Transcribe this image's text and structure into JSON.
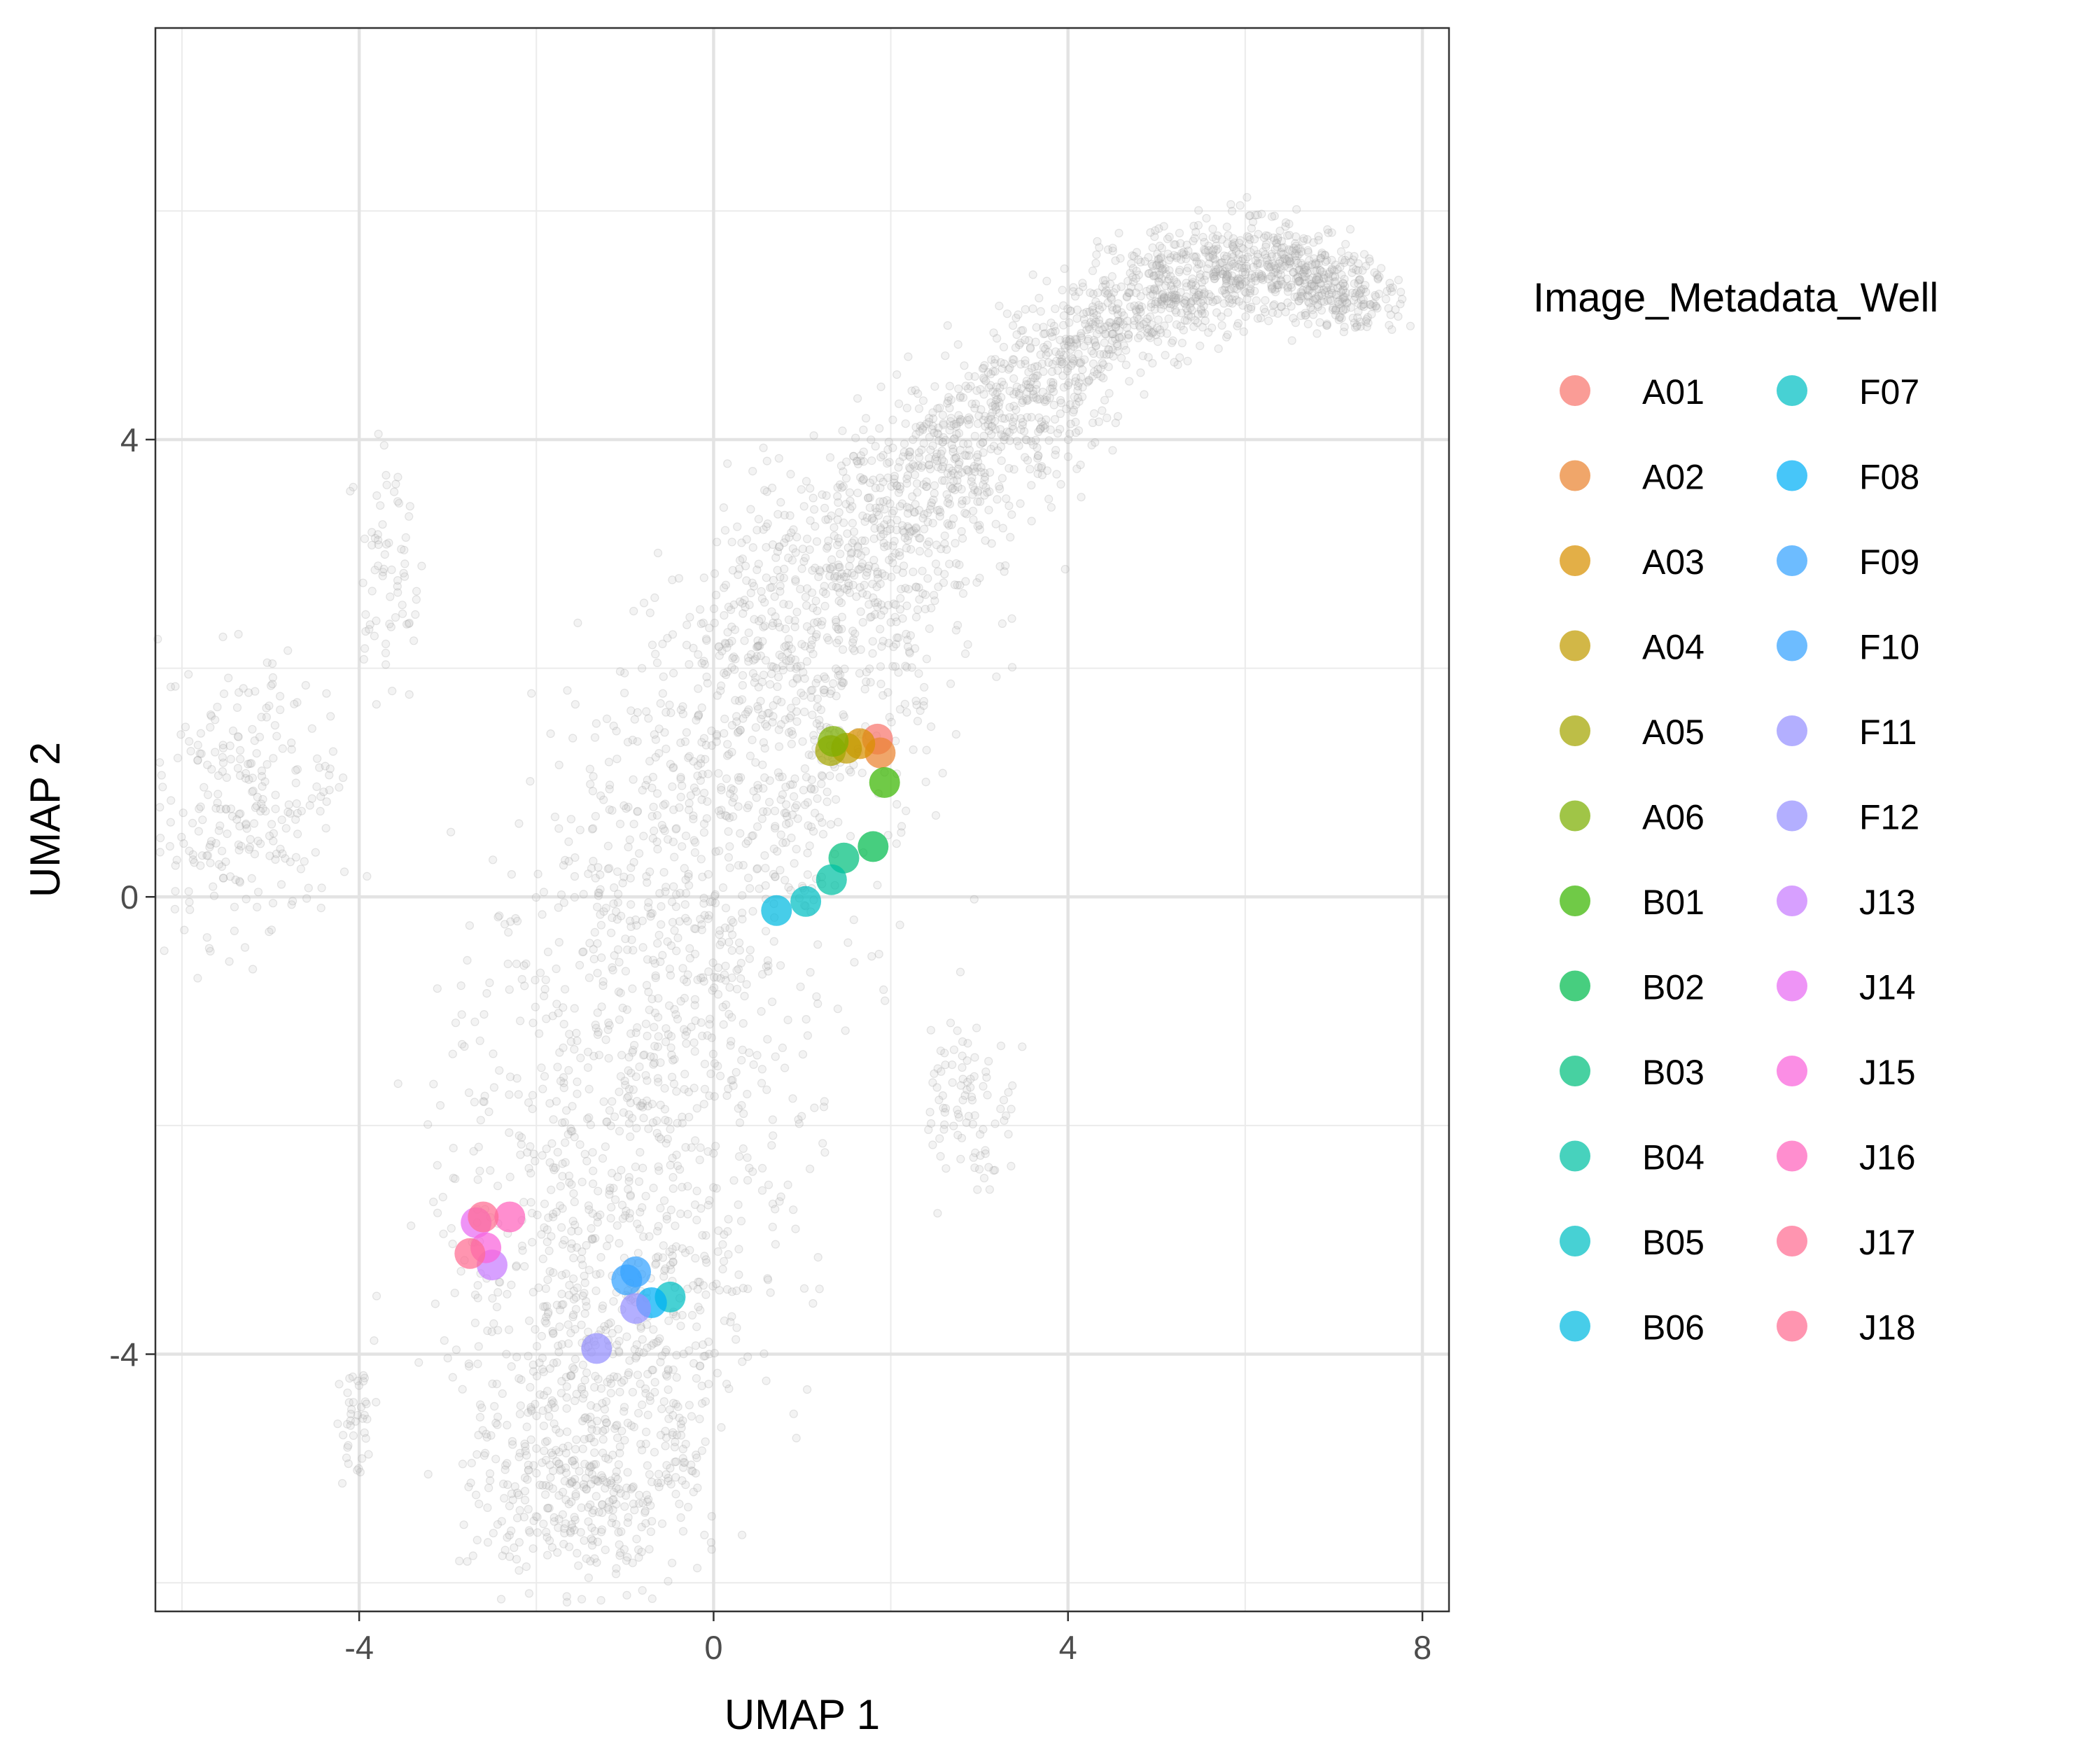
{
  "chart_data": {
    "type": "scatter",
    "xlabel": "UMAP 1",
    "ylabel": "UMAP 2",
    "xlim": [
      -6.3,
      8.3
    ],
    "ylim": [
      -6.25,
      7.6
    ],
    "x_ticks": [
      -4,
      0,
      4,
      8
    ],
    "y_ticks": [
      -4,
      0,
      4
    ],
    "grid": true,
    "legend_title": "Image_Metadata_Well",
    "legend_position": "right",
    "background_point_color": "#bebebe",
    "series": [
      {
        "name": "A01",
        "color": "#F8766D",
        "points": [
          [
            1.85,
            1.38
          ]
        ]
      },
      {
        "name": "A02",
        "color": "#EA8331",
        "points": [
          [
            1.88,
            1.26
          ]
        ]
      },
      {
        "name": "A03",
        "color": "#D89000",
        "points": [
          [
            1.65,
            1.34
          ]
        ]
      },
      {
        "name": "A04",
        "color": "#C09B00",
        "points": [
          [
            1.5,
            1.3
          ]
        ]
      },
      {
        "name": "A05",
        "color": "#A3A500",
        "points": [
          [
            1.32,
            1.28
          ]
        ]
      },
      {
        "name": "A06",
        "color": "#7CAE00",
        "points": [
          [
            1.35,
            1.36
          ]
        ]
      },
      {
        "name": "B01",
        "color": "#39B600",
        "points": [
          [
            1.93,
            1.0
          ]
        ]
      },
      {
        "name": "B02",
        "color": "#00BB4E",
        "points": [
          [
            1.8,
            0.44
          ]
        ]
      },
      {
        "name": "B03",
        "color": "#00BF7D",
        "points": [
          [
            1.47,
            0.34
          ]
        ]
      },
      {
        "name": "B04",
        "color": "#00C1A3",
        "points": [
          [
            1.33,
            0.15
          ]
        ]
      },
      {
        "name": "B05",
        "color": "#00BFC4",
        "points": [
          [
            1.04,
            -0.04
          ]
        ]
      },
      {
        "name": "B06",
        "color": "#00BAE0",
        "points": [
          [
            0.71,
            -0.12
          ]
        ]
      },
      {
        "name": "F07",
        "color": "#00BFC4",
        "points": [
          [
            -0.49,
            -3.5
          ]
        ]
      },
      {
        "name": "F08",
        "color": "#00B0F6",
        "points": [
          [
            -0.7,
            -3.55
          ]
        ]
      },
      {
        "name": "F09",
        "color": "#35A2FF",
        "points": [
          [
            -0.98,
            -3.35
          ]
        ]
      },
      {
        "name": "F10",
        "color": "#35A2FF",
        "points": [
          [
            -0.88,
            -3.28
          ]
        ]
      },
      {
        "name": "F11",
        "color": "#9590FF",
        "points": [
          [
            -0.88,
            -3.6
          ]
        ]
      },
      {
        "name": "F12",
        "color": "#9590FF",
        "points": [
          [
            -1.32,
            -3.95
          ]
        ]
      },
      {
        "name": "J13",
        "color": "#C77CFF",
        "points": [
          [
            -2.5,
            -3.22
          ]
        ]
      },
      {
        "name": "J14",
        "color": "#E76BF3",
        "points": [
          [
            -2.68,
            -2.85
          ]
        ]
      },
      {
        "name": "J15",
        "color": "#FA62DB",
        "points": [
          [
            -2.57,
            -3.07
          ]
        ]
      },
      {
        "name": "J16",
        "color": "#FF62BC",
        "points": [
          [
            -2.3,
            -2.8
          ]
        ]
      },
      {
        "name": "J17",
        "color": "#FF6C91",
        "points": [
          [
            -2.6,
            -2.8
          ]
        ]
      },
      {
        "name": "J18",
        "color": "#FF6C91",
        "points": [
          [
            -2.75,
            -3.12
          ]
        ]
      }
    ]
  }
}
